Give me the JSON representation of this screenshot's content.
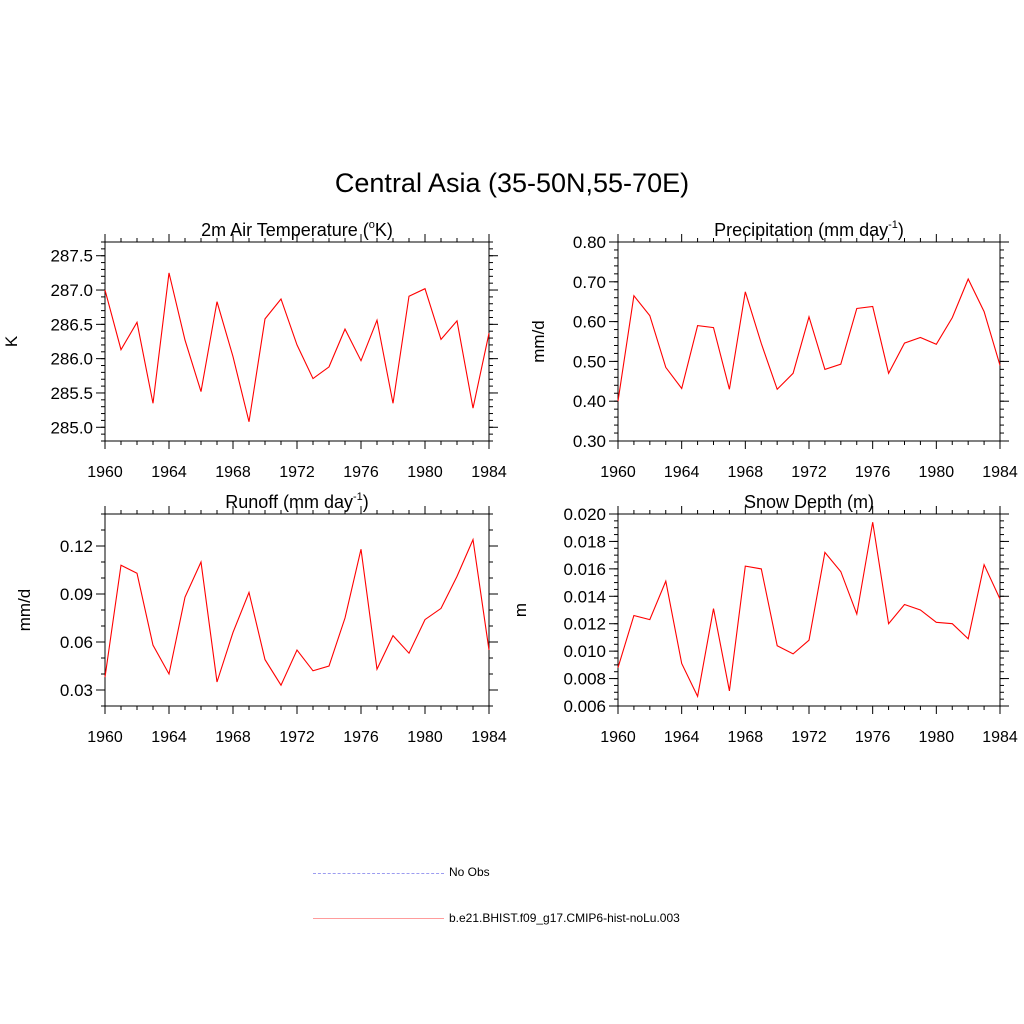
{
  "page": {
    "title": "Central Asia (35-50N,55-70E)"
  },
  "legend": [
    {
      "label": "No Obs",
      "color": "#9c9cf0",
      "style": "dashed"
    },
    {
      "label": "b.e21.BHIST.f09_g17.CMIP6-hist-noLu.003",
      "color": "#ff0000",
      "style": "solid"
    }
  ],
  "chart_data": [
    {
      "type": "line",
      "title": "2m Air Temperature (°K)",
      "title_parts": [
        "2m Air Temperature (",
        "o",
        "K)"
      ],
      "title_sup_index": 1,
      "ylabel": "K",
      "xlim": [
        1960,
        1984
      ],
      "ylim": [
        284.8,
        287.7
      ],
      "xticks": [
        1960,
        1964,
        1968,
        1972,
        1976,
        1980,
        1984
      ],
      "xtick_labels": [
        "1960",
        "1964",
        "1968",
        "1972",
        "1976",
        "1980",
        "1984"
      ],
      "yticks": [
        285.0,
        285.5,
        286.0,
        286.5,
        287.0,
        287.5
      ],
      "ytick_labels": [
        "285.0",
        "285.5",
        "286.0",
        "286.5",
        "287.0",
        "287.5"
      ],
      "yminor_step": 0.1,
      "x": [
        1960,
        1961,
        1962,
        1963,
        1964,
        1965,
        1966,
        1967,
        1968,
        1969,
        1970,
        1971,
        1972,
        1973,
        1974,
        1975,
        1976,
        1977,
        1978,
        1979,
        1980,
        1981,
        1982,
        1983,
        1984
      ],
      "series": [
        {
          "color": "#ff0000",
          "values": [
            287.0,
            286.13,
            286.53,
            285.35,
            287.25,
            286.27,
            285.52,
            286.83,
            286.03,
            285.08,
            286.58,
            286.87,
            286.2,
            285.71,
            285.88,
            286.43,
            285.97,
            286.56,
            285.35,
            286.91,
            287.02,
            286.28,
            286.55,
            285.28,
            286.37
          ]
        }
      ]
    },
    {
      "type": "line",
      "title": "Precipitation (mm day-1)",
      "title_parts": [
        "Precipitation (mm day",
        "-1",
        ")"
      ],
      "title_sup_index": 1,
      "ylabel": "mm/d",
      "xlim": [
        1960,
        1984
      ],
      "ylim": [
        0.3,
        0.8
      ],
      "xticks": [
        1960,
        1964,
        1968,
        1972,
        1976,
        1980,
        1984
      ],
      "xtick_labels": [
        "1960",
        "1964",
        "1968",
        "1972",
        "1976",
        "1980",
        "1984"
      ],
      "yticks": [
        0.3,
        0.4,
        0.5,
        0.6,
        0.7,
        0.8
      ],
      "ytick_labels": [
        "0.30",
        "0.40",
        "0.50",
        "0.60",
        "0.70",
        "0.80"
      ],
      "yminor_step": 0.02,
      "x": [
        1960,
        1961,
        1962,
        1963,
        1964,
        1965,
        1966,
        1967,
        1968,
        1969,
        1970,
        1971,
        1972,
        1973,
        1974,
        1975,
        1976,
        1977,
        1978,
        1979,
        1980,
        1981,
        1982,
        1983,
        1984
      ],
      "series": [
        {
          "color": "#ff0000",
          "values": [
            0.4,
            0.665,
            0.615,
            0.485,
            0.432,
            0.59,
            0.585,
            0.43,
            0.675,
            0.545,
            0.43,
            0.47,
            0.612,
            0.48,
            0.493,
            0.633,
            0.638,
            0.47,
            0.546,
            0.56,
            0.543,
            0.61,
            0.707,
            0.625,
            0.49
          ]
        }
      ]
    },
    {
      "type": "line",
      "title": "Runoff (mm day-1)",
      "title_parts": [
        "Runoff (mm day",
        "-1",
        ")"
      ],
      "title_sup_index": 1,
      "ylabel": "mm/d",
      "xlim": [
        1960,
        1984
      ],
      "ylim": [
        0.02,
        0.14
      ],
      "xticks": [
        1960,
        1964,
        1968,
        1972,
        1976,
        1980,
        1984
      ],
      "xtick_labels": [
        "1960",
        "1964",
        "1968",
        "1972",
        "1976",
        "1980",
        "1984"
      ],
      "yticks": [
        0.03,
        0.06,
        0.09,
        0.12
      ],
      "ytick_labels": [
        "0.03",
        "0.06",
        "0.09",
        "0.12"
      ],
      "yminor_step": 0.01,
      "x": [
        1960,
        1961,
        1962,
        1963,
        1964,
        1965,
        1966,
        1967,
        1968,
        1969,
        1970,
        1971,
        1972,
        1973,
        1974,
        1975,
        1976,
        1977,
        1978,
        1979,
        1980,
        1981,
        1982,
        1983,
        1984
      ],
      "series": [
        {
          "color": "#ff0000",
          "values": [
            0.038,
            0.108,
            0.103,
            0.058,
            0.04,
            0.088,
            0.11,
            0.035,
            0.066,
            0.091,
            0.049,
            0.033,
            0.055,
            0.042,
            0.045,
            0.075,
            0.118,
            0.043,
            0.064,
            0.053,
            0.074,
            0.081,
            0.101,
            0.124,
            0.055
          ]
        }
      ]
    },
    {
      "type": "line",
      "title": "Snow Depth (m)",
      "title_parts": [
        "Snow Depth (m)"
      ],
      "title_sup_index": -1,
      "ylabel": "m",
      "xlim": [
        1960,
        1984
      ],
      "ylim": [
        0.006,
        0.02
      ],
      "xticks": [
        1960,
        1964,
        1968,
        1972,
        1976,
        1980,
        1984
      ],
      "xtick_labels": [
        "1960",
        "1964",
        "1968",
        "1972",
        "1976",
        "1980",
        "1984"
      ],
      "yticks": [
        0.006,
        0.008,
        0.01,
        0.012,
        0.014,
        0.016,
        0.018,
        0.02
      ],
      "ytick_labels": [
        "0.006",
        "0.008",
        "0.010",
        "0.012",
        "0.014",
        "0.016",
        "0.018",
        "0.020"
      ],
      "yminor_step": 0.0005,
      "x": [
        1960,
        1961,
        1962,
        1963,
        1964,
        1965,
        1966,
        1967,
        1968,
        1969,
        1970,
        1971,
        1972,
        1973,
        1974,
        1975,
        1976,
        1977,
        1978,
        1979,
        1980,
        1981,
        1982,
        1983,
        1984
      ],
      "series": [
        {
          "color": "#ff0000",
          "values": [
            0.0088,
            0.0126,
            0.0123,
            0.0151,
            0.0091,
            0.0067,
            0.0131,
            0.0071,
            0.0162,
            0.016,
            0.0104,
            0.0098,
            0.0108,
            0.0172,
            0.0158,
            0.0127,
            0.0194,
            0.012,
            0.0134,
            0.013,
            0.0121,
            0.012,
            0.0109,
            0.0163,
            0.0138
          ]
        }
      ]
    }
  ]
}
